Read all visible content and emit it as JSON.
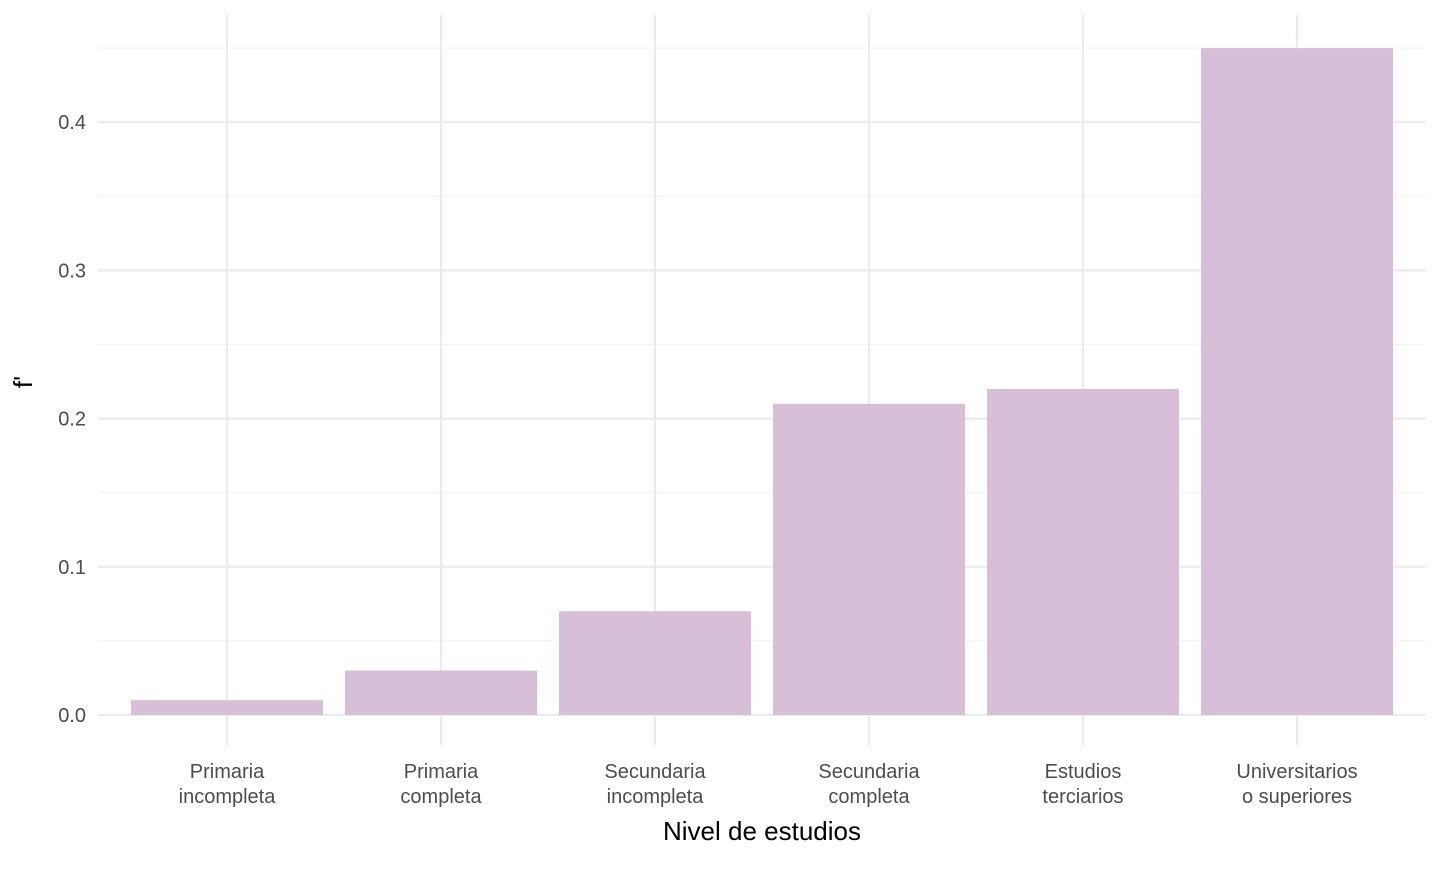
{
  "chart_data": {
    "type": "bar",
    "categories": [
      [
        "Primaria",
        "incompleta"
      ],
      [
        "Primaria",
        "completa"
      ],
      [
        "Secundaria",
        "incompleta"
      ],
      [
        "Secundaria",
        "completa"
      ],
      [
        "Estudios",
        "terciarios"
      ],
      [
        "Universitarios",
        "o superiores"
      ]
    ],
    "values": [
      0.01,
      0.03,
      0.07,
      0.21,
      0.22,
      0.45
    ],
    "title": "",
    "xlabel": "Nivel de estudios",
    "ylabel": "f'",
    "ylim": [
      0,
      0.45
    ],
    "yticks": [
      "0.0",
      "0.1",
      "0.2",
      "0.3",
      "0.4"
    ],
    "grid": true,
    "legend": "none",
    "colors": {
      "bar": "#d8bfd8",
      "grid_major": "#ebebeb",
      "grid_minor": "#f4f4f4",
      "tick_text": "#4d4d4d",
      "title_text": "#000000"
    }
  }
}
